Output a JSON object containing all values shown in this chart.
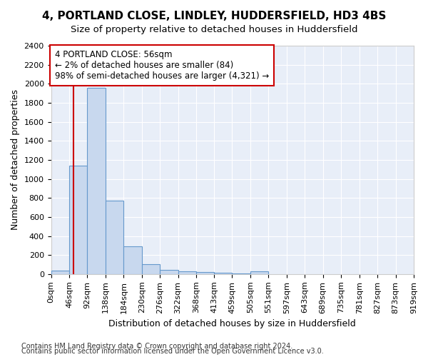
{
  "title": "4, PORTLAND CLOSE, LINDLEY, HUDDERSFIELD, HD3 4BS",
  "subtitle": "Size of property relative to detached houses in Huddersfield",
  "xlabel": "Distribution of detached houses by size in Huddersfield",
  "ylabel": "Number of detached properties",
  "bin_edges": [
    0,
    46,
    92,
    138,
    184,
    230,
    276,
    322,
    368,
    413,
    459,
    505,
    551,
    597,
    643,
    689,
    735,
    781,
    827,
    873,
    919
  ],
  "bar_heights": [
    38,
    1140,
    1960,
    775,
    295,
    100,
    45,
    30,
    20,
    10,
    5,
    30,
    0,
    0,
    0,
    0,
    0,
    0,
    0,
    0
  ],
  "bar_color": "#c8d8ee",
  "bar_edgecolor": "#6699cc",
  "property_size": 56,
  "vline_color": "#cc0000",
  "annotation_text": "4 PORTLAND CLOSE: 56sqm\n← 2% of detached houses are smaller (84)\n98% of semi-detached houses are larger (4,321) →",
  "ylim": [
    0,
    2400
  ],
  "yticks": [
    0,
    200,
    400,
    600,
    800,
    1000,
    1200,
    1400,
    1600,
    1800,
    2000,
    2200,
    2400
  ],
  "footer1": "Contains HM Land Registry data © Crown copyright and database right 2024.",
  "footer2": "Contains public sector information licensed under the Open Government Licence v3.0.",
  "bg_color": "#ffffff",
  "plot_bg_color": "#e8eef8",
  "grid_color": "#ffffff",
  "title_fontsize": 11,
  "subtitle_fontsize": 9.5,
  "axis_label_fontsize": 9,
  "tick_fontsize": 8,
  "footer_fontsize": 7,
  "annot_fontsize": 8.5
}
